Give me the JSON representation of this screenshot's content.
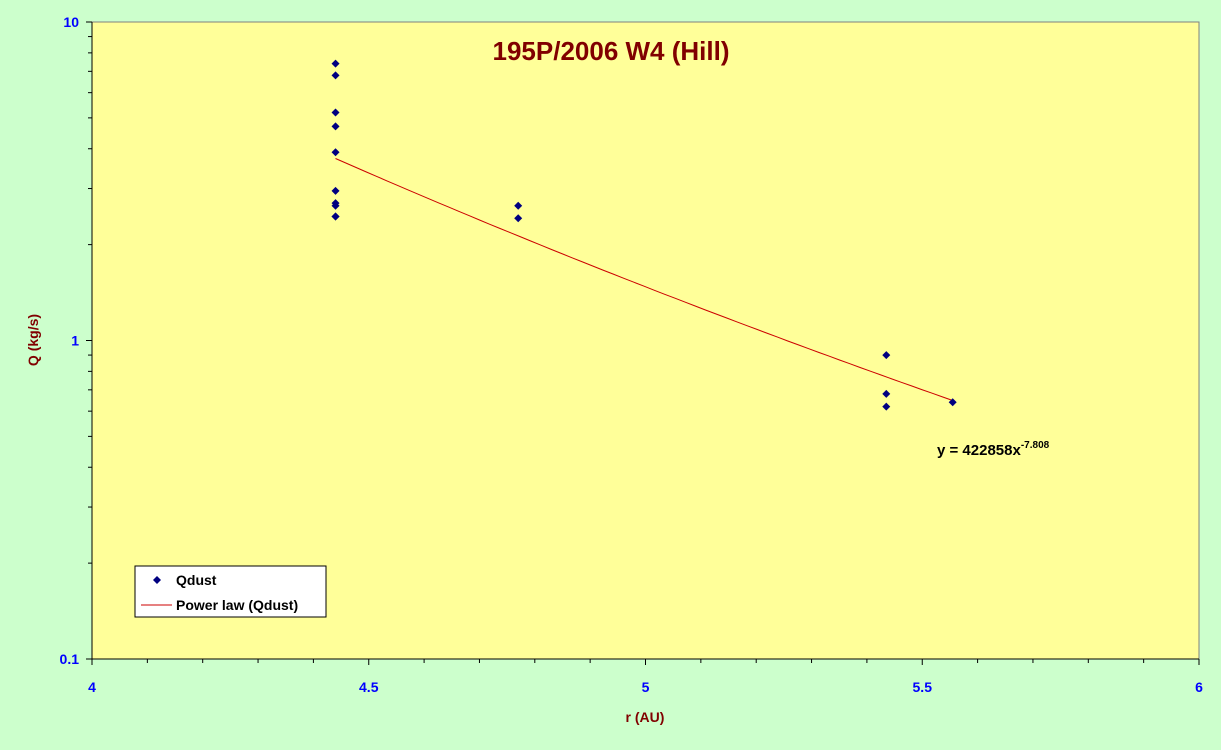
{
  "chart_data": {
    "type": "scatter",
    "title": "195P/2006 W4 (Hill)",
    "xlabel": "r (AU)",
    "ylabel": "Q (kg/s)",
    "xlim": [
      4,
      6
    ],
    "ylim": [
      0.1,
      10
    ],
    "yscale": "log",
    "grid": false,
    "x_ticks": [
      "4",
      "4.5",
      "5",
      "5.5",
      "6"
    ],
    "y_ticks": [
      "10",
      "1",
      "0.1"
    ],
    "series": [
      {
        "name": "Qdust",
        "x": [
          4.44,
          4.44,
          4.44,
          4.44,
          4.44,
          4.44,
          4.44,
          4.44,
          4.44,
          4.44,
          4.77,
          4.77,
          5.435,
          5.435,
          5.435,
          5.555
        ],
        "y": [
          7.4,
          6.8,
          5.2,
          4.7,
          3.9,
          2.95,
          2.7,
          2.65,
          2.45,
          2.45,
          2.65,
          2.42,
          0.9,
          0.68,
          0.62,
          0.64
        ]
      }
    ],
    "trendline": {
      "name": "Power law (Qdust)",
      "type": "power",
      "coefficient": 422858,
      "exponent": -7.808,
      "x_range": [
        4.44,
        5.555
      ],
      "equation_base": "y = 422858x",
      "equation_exponent": "-7.808"
    },
    "legend": {
      "position": "bottom-left",
      "entries": [
        "Qdust",
        "Power law (Qdust)"
      ]
    },
    "colors": {
      "page_background": "#ccffcc",
      "plot_background": "#ffff99",
      "marker": "#000080",
      "trendline": "#cc0000",
      "tick_labels": "#0000ff",
      "titles": "#800000"
    }
  }
}
